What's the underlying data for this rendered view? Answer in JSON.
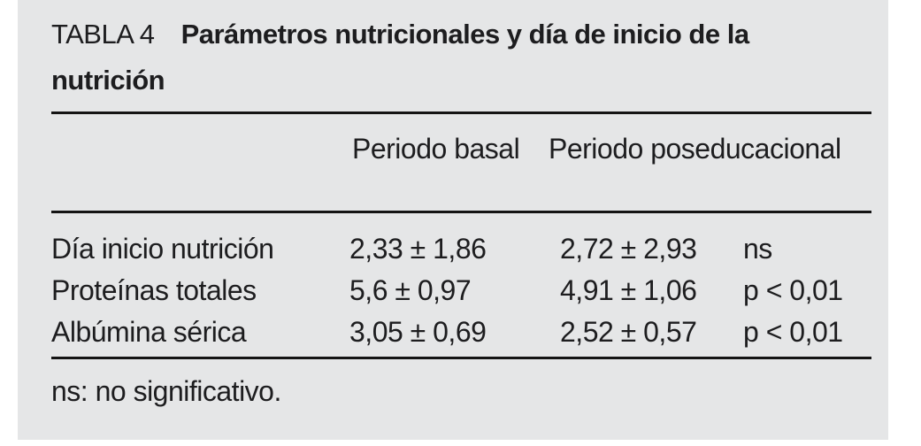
{
  "table": {
    "label": "TABLA 4",
    "title": "Parámetros nutricionales y día de inicio de la nutrición",
    "header": {
      "basal": "Periodo basal",
      "post": "Periodo poseducacional"
    },
    "rows": [
      {
        "param": "Día inicio nutrición",
        "basal": "2,33 ± 1,86",
        "post": "2,72 ± 2,93",
        "sig": "ns"
      },
      {
        "param": "Proteínas totales",
        "basal": "5,6 ± 0,97",
        "post": "4,91 ± 1,06",
        "sig": "p < 0,01"
      },
      {
        "param": "Albúmina sérica",
        "basal": "3,05 ± 0,69",
        "post": "2,52 ± 0,57",
        "sig": "p < 0,01"
      }
    ],
    "footnote": "ns: no significativo."
  },
  "colors": {
    "panel_bg": "#e5e6e7",
    "text": "#1d1d1f",
    "rule": "#141414",
    "page_bg": "#ffffff"
  }
}
